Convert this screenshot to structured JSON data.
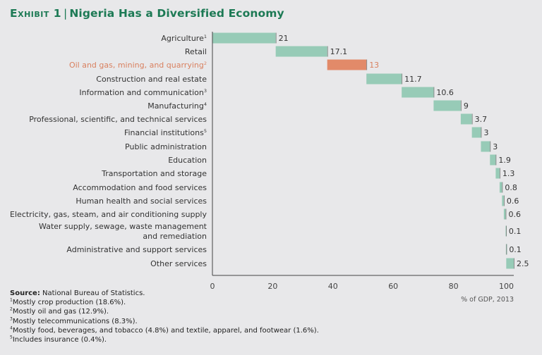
{
  "title": {
    "exhibit": "Exhibit 1",
    "separator": "|",
    "text": "Nigeria Has a Diversified Economy"
  },
  "chart_data": {
    "type": "waterfall-bar",
    "xlabel": "% of GDP, 2013",
    "xlim": [
      0,
      100
    ],
    "xticks": [
      0,
      20,
      40,
      60,
      80,
      100
    ],
    "grid": false,
    "colors": {
      "default": "#97cbb7",
      "highlight": "#e28a69",
      "highlight_label": "#d9805f"
    },
    "categories": [
      {
        "label": "Agriculture",
        "note": "1",
        "value": 21
      },
      {
        "label": "Retail",
        "note": "",
        "value": 17.1
      },
      {
        "label": "Oil and gas, mining, and quarrying",
        "note": "2",
        "value": 13,
        "highlight": true
      },
      {
        "label": "Construction and real estate",
        "note": "",
        "value": 11.7
      },
      {
        "label": "Information and communication",
        "note": "3",
        "value": 10.6
      },
      {
        "label": "Manufacturing",
        "note": "4",
        "value": 9
      },
      {
        "label": "Professional, scientific, and technical services",
        "note": "",
        "value": 3.7
      },
      {
        "label": "Financial institutions",
        "note": "5",
        "value": 3
      },
      {
        "label": "Public administration",
        "note": "",
        "value": 3
      },
      {
        "label": "Education",
        "note": "",
        "value": 1.9
      },
      {
        "label": "Transportation and storage",
        "note": "",
        "value": 1.3
      },
      {
        "label": "Accommodation and food services",
        "note": "",
        "value": 0.8
      },
      {
        "label": "Human health and social services",
        "note": "",
        "value": 0.6
      },
      {
        "label": "Electricity, gas, steam, and air conditioning supply",
        "note": "",
        "value": 0.6
      },
      {
        "label": "Water supply, sewage, waste management|and remediation",
        "note": "",
        "value": 0.1
      },
      {
        "label": "Administrative and support services",
        "note": "",
        "value": 0.1
      },
      {
        "label": "Other services",
        "note": "",
        "value": 2.5
      }
    ]
  },
  "notes": {
    "source_label": "Source:",
    "source_text": "National Bureau of Statistics.",
    "footnotes": [
      {
        "mark": "1",
        "text": "Mostly crop production (18.6%)."
      },
      {
        "mark": "2",
        "text": "Mostly oil and gas (12.9%)."
      },
      {
        "mark": "3",
        "text": "Mostly telecommunications (8.3%)."
      },
      {
        "mark": "4",
        "text": "Mostly food, beverages, and tobacco (4.8%) and textile, apparel, and footwear (1.6%)."
      },
      {
        "mark": "5",
        "text": "Includes insurance (0.4%)."
      }
    ]
  }
}
